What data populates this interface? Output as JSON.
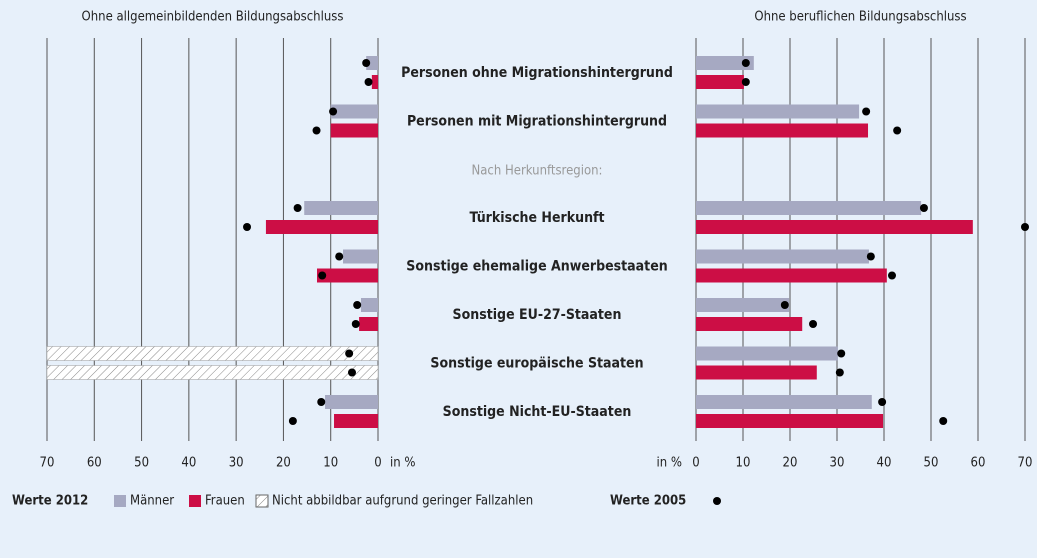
{
  "chart_data": {
    "type": "bar",
    "categories": [
      "Personen ohne Migrationshintergrund",
      "Personen mit Migrationshintergrund",
      "Türkische Herkunft",
      "Sonstige ehemalige Anwerbestaaten",
      "Sonstige EU-27-Staaten",
      "Sonstige europäische Staaten",
      "Sonstige Nicht-EU-Staaten"
    ],
    "section_label": "Nach Herkunftsregion:",
    "unit_label": "in %",
    "legend": {
      "group_2012": "Werte 2012",
      "group_2005": "Werte 2005",
      "na_label": "Nicht abbildbar aufgrund geringer Fallzahlen"
    },
    "panels": [
      {
        "title": "Ohne allgemeinbildenden Bildungsabschluss",
        "direction": "left",
        "xlim": [
          0,
          70
        ],
        "xticks": [
          0,
          10,
          20,
          30,
          40,
          50,
          60,
          70
        ],
        "series": [
          {
            "name": "Männer",
            "color": "#a6a9c2",
            "values": [
              2.5,
              10,
              15.6,
              7.4,
              3.6,
              null,
              11.2
            ]
          },
          {
            "name": "Frauen",
            "color": "#cc0e45",
            "values": [
              1.3,
              10,
              23.7,
              12.9,
              4,
              null,
              9.3
            ]
          }
        ],
        "series_2005": [
          {
            "color": "#000000",
            "values": [
              2.5,
              9.5,
              17,
              8.2,
              4.4,
              6.1,
              12
            ]
          },
          {
            "color": "#000000",
            "values": [
              2,
              13,
              27.7,
              11.8,
              4.7,
              5.5,
              18
            ]
          }
        ]
      },
      {
        "title": "Ohne beruflichen Bildungsabschluss",
        "direction": "right",
        "xlim": [
          0,
          70
        ],
        "xticks": [
          0,
          10,
          20,
          30,
          40,
          50,
          60,
          70
        ],
        "series": [
          {
            "name": "Männer",
            "color": "#a6a9c2",
            "values": [
              12.3,
              34.7,
              47.9,
              36.8,
              19.8,
              30.2,
              37.4
            ]
          },
          {
            "name": "Frauen",
            "color": "#cc0e45",
            "values": [
              10.2,
              36.6,
              58.9,
              40.6,
              22.6,
              25.7,
              39.8
            ]
          }
        ],
        "series_2005": [
          {
            "color": "#000000",
            "values": [
              10.6,
              36.2,
              48.5,
              37.2,
              18.9,
              30.9,
              39.6
            ]
          },
          {
            "color": "#000000",
            "values": [
              10.6,
              42.8,
              70,
              41.7,
              24.9,
              30.6,
              52.6
            ]
          }
        ]
      }
    ]
  }
}
